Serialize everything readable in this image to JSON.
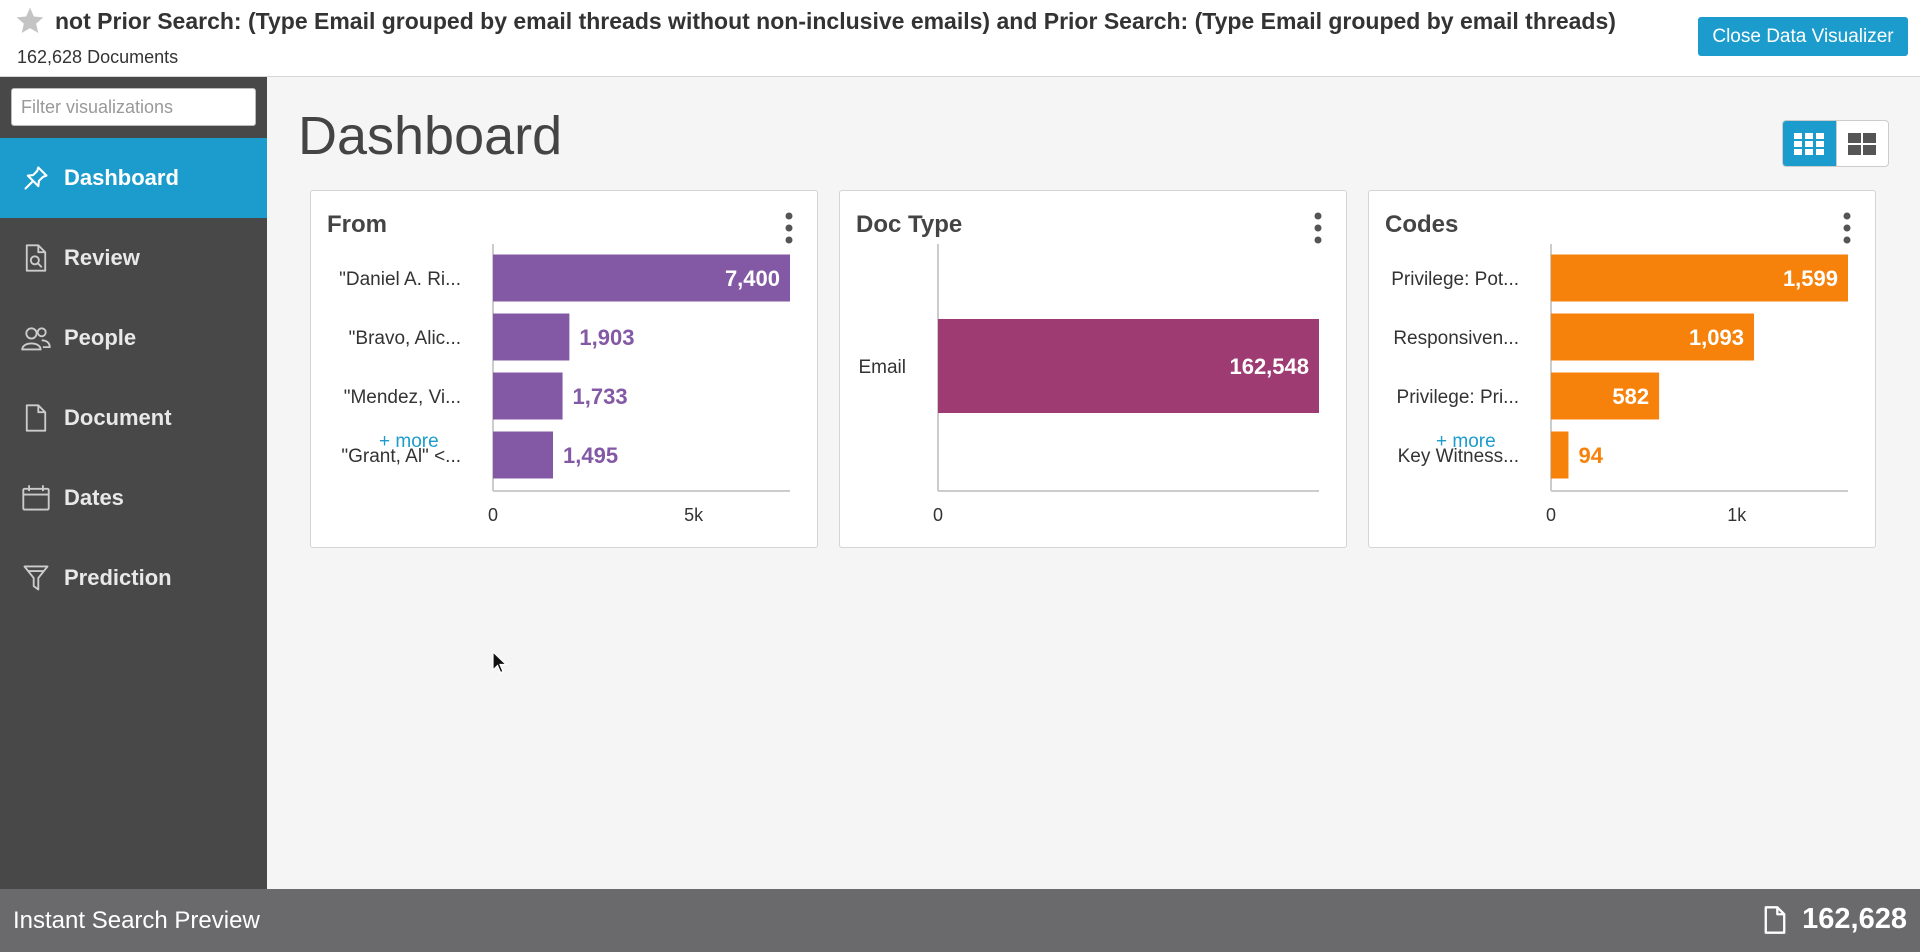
{
  "header": {
    "search_title": "not Prior Search: (Type Email grouped by email threads without non-inclusive emails) and Prior Search: (Type Email grouped by email threads)",
    "doc_count": "162,628 Documents",
    "close_label": "Close Data Visualizer"
  },
  "sidebar": {
    "filter_placeholder": "Filter visualizations",
    "items": [
      {
        "label": "Dashboard",
        "icon": "pin-icon",
        "active": true
      },
      {
        "label": "Review",
        "icon": "document-search-icon",
        "active": false
      },
      {
        "label": "People",
        "icon": "people-icon",
        "active": false
      },
      {
        "label": "Document",
        "icon": "document-icon",
        "active": false
      },
      {
        "label": "Dates",
        "icon": "calendar-icon",
        "active": false
      },
      {
        "label": "Prediction",
        "icon": "funnel-icon",
        "active": false
      }
    ]
  },
  "main": {
    "title": "Dashboard",
    "view_options": [
      "grid-view-icon",
      "tile-view-icon"
    ]
  },
  "colors": {
    "accent": "#1b9ccc",
    "from_bar": "#8358a5",
    "doctype_bar": "#9e3b73",
    "codes_bar": "#f7820b"
  },
  "chart_data": [
    {
      "type": "bar",
      "orientation": "horizontal",
      "title": "From",
      "categories": [
        "\"Daniel A. Ri...",
        "\"Bravo, Alic...",
        "\"Mendez, Vi...",
        "\"Grant, Al\" <..."
      ],
      "values": [
        7400,
        1903,
        1733,
        1495
      ],
      "value_labels": [
        "7,400",
        "1,903",
        "1,733",
        "1,495"
      ],
      "xlim": [
        0,
        7400
      ],
      "ticks": [
        {
          "value": 0,
          "label": "0"
        },
        {
          "value": 5000,
          "label": "5k"
        }
      ],
      "more_label": "+ more"
    },
    {
      "type": "bar",
      "orientation": "horizontal",
      "title": "Doc Type",
      "categories": [
        "Email"
      ],
      "values": [
        162548
      ],
      "value_labels": [
        "162,548"
      ],
      "xlim": [
        0,
        162548
      ],
      "ticks": [
        {
          "value": 0,
          "label": "0"
        }
      ],
      "more_label": ""
    },
    {
      "type": "bar",
      "orientation": "horizontal",
      "title": "Codes",
      "categories": [
        "Privilege: Pot...",
        "Responsiven...",
        "Privilege: Pri...",
        "Key Witness..."
      ],
      "values": [
        1599,
        1093,
        582,
        94
      ],
      "value_labels": [
        "1,599",
        "1,093",
        "582",
        "94"
      ],
      "xlim": [
        0,
        1599
      ],
      "ticks": [
        {
          "value": 0,
          "label": "0"
        },
        {
          "value": 1000,
          "label": "1k"
        }
      ],
      "more_label": "+ more"
    }
  ],
  "footer": {
    "label": "Instant Search Preview",
    "count": "162,628"
  }
}
